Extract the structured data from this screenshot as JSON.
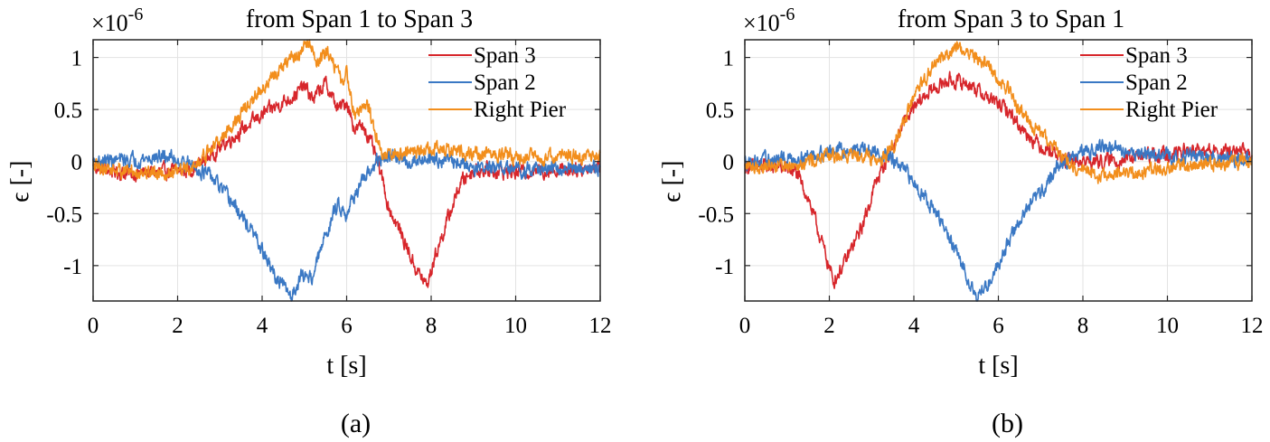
{
  "figure": {
    "panels": [
      "a",
      "b"
    ]
  },
  "chart_data": [
    {
      "type": "line",
      "panel_caption": "(a)",
      "title": "from Span 1 to Span 3",
      "exponent_label": "×10",
      "exponent_power": "-6",
      "xlabel": "t [s]",
      "ylabel": "ϵ [-]",
      "xlim": [
        0,
        12
      ],
      "ylim": [
        -1.34,
        1.17
      ],
      "xticks": [
        0,
        2,
        4,
        6,
        8,
        10,
        12
      ],
      "xtick_labels": [
        "0",
        "2",
        "4",
        "6",
        "8",
        "10",
        "12"
      ],
      "yticks": [
        -1,
        -0.5,
        0,
        0.5,
        1
      ],
      "ytick_labels": [
        "-1",
        "-0.5",
        "0",
        "0.5",
        "1"
      ],
      "grid": true,
      "legend_position": "top-right",
      "series": [
        {
          "name": "Span 3",
          "color": "#d7262b",
          "points": [
            [
              0,
              -0.05
            ],
            [
              0.8,
              -0.12
            ],
            [
              1.5,
              -0.1
            ],
            [
              2.3,
              -0.08
            ],
            [
              2.6,
              0.0
            ],
            [
              3.2,
              0.2
            ],
            [
              4.0,
              0.45
            ],
            [
              4.7,
              0.62
            ],
            [
              5.0,
              0.72
            ],
            [
              5.2,
              0.6
            ],
            [
              5.5,
              0.75
            ],
            [
              5.8,
              0.5
            ],
            [
              6.0,
              0.58
            ],
            [
              6.2,
              0.3
            ],
            [
              6.4,
              0.35
            ],
            [
              6.6,
              0.15
            ],
            [
              6.8,
              -0.1
            ],
            [
              7.0,
              -0.45
            ],
            [
              7.3,
              -0.7
            ],
            [
              7.6,
              -1.0
            ],
            [
              7.9,
              -1.2
            ],
            [
              8.1,
              -0.9
            ],
            [
              8.4,
              -0.55
            ],
            [
              8.7,
              -0.2
            ],
            [
              9.0,
              -0.08
            ],
            [
              10.0,
              -0.1
            ],
            [
              11.0,
              -0.08
            ],
            [
              12.0,
              -0.05
            ]
          ],
          "noise": 0.05
        },
        {
          "name": "Span 2",
          "color": "#3a78c4",
          "points": [
            [
              0,
              0.0
            ],
            [
              1.0,
              0.02
            ],
            [
              1.8,
              0.05
            ],
            [
              2.4,
              -0.05
            ],
            [
              2.8,
              -0.15
            ],
            [
              3.3,
              -0.4
            ],
            [
              3.8,
              -0.7
            ],
            [
              4.3,
              -1.1
            ],
            [
              4.7,
              -1.3
            ],
            [
              4.9,
              -1.1
            ],
            [
              5.2,
              -1.1
            ],
            [
              5.5,
              -0.7
            ],
            [
              5.8,
              -0.4
            ],
            [
              6.0,
              -0.5
            ],
            [
              6.2,
              -0.3
            ],
            [
              6.4,
              -0.2
            ],
            [
              6.7,
              0.0
            ],
            [
              7.0,
              0.05
            ],
            [
              7.5,
              0.0
            ],
            [
              8.0,
              0.05
            ],
            [
              9.0,
              -0.05
            ],
            [
              10.0,
              -0.08
            ],
            [
              11.0,
              -0.07
            ],
            [
              12.0,
              -0.05
            ]
          ],
          "noise": 0.05
        },
        {
          "name": "Right Pier",
          "color": "#f28e1c",
          "points": [
            [
              0,
              -0.05
            ],
            [
              1.0,
              -0.1
            ],
            [
              2.0,
              -0.1
            ],
            [
              2.4,
              -0.05
            ],
            [
              2.8,
              0.12
            ],
            [
              3.4,
              0.4
            ],
            [
              4.0,
              0.7
            ],
            [
              4.6,
              0.95
            ],
            [
              4.9,
              1.05
            ],
            [
              5.1,
              1.15
            ],
            [
              5.3,
              0.95
            ],
            [
              5.6,
              1.05
            ],
            [
              5.9,
              0.75
            ],
            [
              6.0,
              0.85
            ],
            [
              6.2,
              0.45
            ],
            [
              6.5,
              0.55
            ],
            [
              6.8,
              0.1
            ],
            [
              7.0,
              0.05
            ],
            [
              8.0,
              0.12
            ],
            [
              9.0,
              0.08
            ],
            [
              10.0,
              0.05
            ],
            [
              11.0,
              0.05
            ],
            [
              12.0,
              0.05
            ]
          ],
          "noise": 0.05
        }
      ]
    },
    {
      "type": "line",
      "panel_caption": "(b)",
      "title": "from Span 3 to Span 1",
      "exponent_label": "×10",
      "exponent_power": "-6",
      "xlabel": "t [s]",
      "ylabel": "ϵ [-]",
      "xlim": [
        0,
        12
      ],
      "ylim": [
        -1.34,
        1.17
      ],
      "xticks": [
        0,
        2,
        4,
        6,
        8,
        10,
        12
      ],
      "xtick_labels": [
        "0",
        "2",
        "4",
        "6",
        "8",
        "10",
        "12"
      ],
      "yticks": [
        -1,
        -0.5,
        0,
        0.5,
        1
      ],
      "ytick_labels": [
        "-1",
        "-0.5",
        "0",
        "0.5",
        "1"
      ],
      "grid": true,
      "legend_position": "top-right",
      "series": [
        {
          "name": "Span 3",
          "color": "#d7262b",
          "points": [
            [
              0,
              -0.05
            ],
            [
              0.8,
              -0.05
            ],
            [
              1.2,
              -0.1
            ],
            [
              1.5,
              -0.35
            ],
            [
              1.8,
              -0.75
            ],
            [
              2.1,
              -1.15
            ],
            [
              2.4,
              -0.95
            ],
            [
              2.8,
              -0.6
            ],
            [
              3.1,
              -0.2
            ],
            [
              3.4,
              0.05
            ],
            [
              3.8,
              0.4
            ],
            [
              4.3,
              0.65
            ],
            [
              4.8,
              0.78
            ],
            [
              5.3,
              0.75
            ],
            [
              5.8,
              0.6
            ],
            [
              6.2,
              0.5
            ],
            [
              6.6,
              0.3
            ],
            [
              7.0,
              0.15
            ],
            [
              7.3,
              0.1
            ],
            [
              7.6,
              0.0
            ],
            [
              8.5,
              0.0
            ],
            [
              9.5,
              0.05
            ],
            [
              10.5,
              0.1
            ],
            [
              12.0,
              0.08
            ]
          ],
          "noise": 0.05
        },
        {
          "name": "Span 2",
          "color": "#3a78c4",
          "points": [
            [
              0,
              0.0
            ],
            [
              1.0,
              0.02
            ],
            [
              2.0,
              0.1
            ],
            [
              2.8,
              0.12
            ],
            [
              3.4,
              0.05
            ],
            [
              3.8,
              -0.1
            ],
            [
              4.3,
              -0.35
            ],
            [
              4.8,
              -0.7
            ],
            [
              5.2,
              -1.05
            ],
            [
              5.5,
              -1.3
            ],
            [
              5.8,
              -1.15
            ],
            [
              6.2,
              -0.8
            ],
            [
              6.6,
              -0.5
            ],
            [
              7.0,
              -0.3
            ],
            [
              7.4,
              -0.05
            ],
            [
              7.8,
              0.05
            ],
            [
              8.4,
              0.15
            ],
            [
              9.0,
              0.1
            ],
            [
              10.0,
              0.05
            ],
            [
              11.0,
              0.05
            ],
            [
              12.0,
              0.0
            ]
          ],
          "noise": 0.05
        },
        {
          "name": "Right Pier",
          "color": "#f28e1c",
          "points": [
            [
              0,
              -0.05
            ],
            [
              1.0,
              -0.03
            ],
            [
              2.0,
              0.05
            ],
            [
              2.8,
              0.08
            ],
            [
              3.2,
              0.0
            ],
            [
              3.5,
              0.15
            ],
            [
              4.0,
              0.6
            ],
            [
              4.5,
              0.95
            ],
            [
              5.0,
              1.1
            ],
            [
              5.3,
              1.05
            ],
            [
              5.8,
              0.9
            ],
            [
              6.2,
              0.7
            ],
            [
              6.6,
              0.45
            ],
            [
              7.0,
              0.25
            ],
            [
              7.4,
              0.1
            ],
            [
              7.8,
              -0.05
            ],
            [
              8.4,
              -0.15
            ],
            [
              9.0,
              -0.12
            ],
            [
              10.0,
              -0.05
            ],
            [
              11.0,
              -0.03
            ],
            [
              12.0,
              0.0
            ]
          ],
          "noise": 0.05
        }
      ]
    }
  ]
}
